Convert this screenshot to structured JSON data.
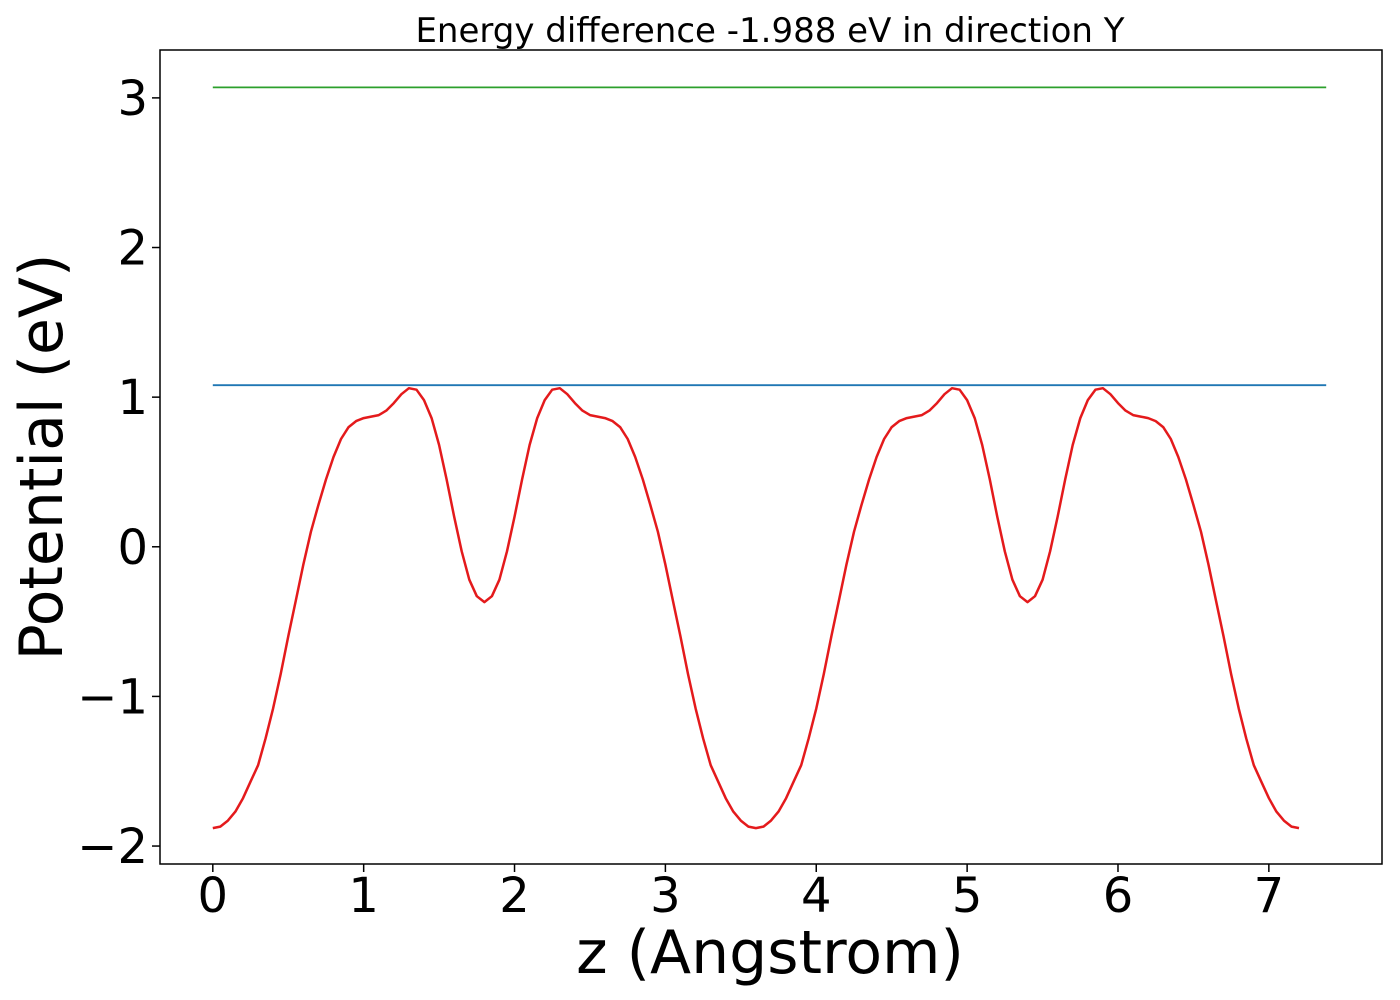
{
  "chart_data": {
    "type": "line",
    "title": "Energy difference -1.988 eV in direction Y",
    "xlabel": "z (Angstrom)",
    "ylabel": "Potential (eV)",
    "xlim": [
      -0.35,
      7.75
    ],
    "ylim": [
      -2.12,
      3.32
    ],
    "xticks": [
      0,
      1,
      2,
      3,
      4,
      5,
      6,
      7
    ],
    "xtick_labels": [
      "0",
      "1",
      "2",
      "3",
      "4",
      "5",
      "6",
      "7"
    ],
    "yticks": [
      -2,
      -1,
      0,
      1,
      2,
      3
    ],
    "ytick_labels": [
      "−2",
      "−1",
      "0",
      "1",
      "2",
      "3"
    ],
    "grid": false,
    "series": [
      {
        "color": "#e41a1c",
        "points": [
          [
            0.0,
            -1.88
          ],
          [
            0.05,
            -1.87
          ],
          [
            0.1,
            -1.83
          ],
          [
            0.15,
            -1.77
          ],
          [
            0.2,
            -1.68
          ],
          [
            0.25,
            -1.57
          ],
          [
            0.3,
            -1.46
          ],
          [
            0.35,
            -1.28
          ],
          [
            0.4,
            -1.08
          ],
          [
            0.45,
            -0.85
          ],
          [
            0.5,
            -0.6
          ],
          [
            0.55,
            -0.36
          ],
          [
            0.6,
            -0.12
          ],
          [
            0.65,
            0.1
          ],
          [
            0.7,
            0.28
          ],
          [
            0.75,
            0.45
          ],
          [
            0.8,
            0.6
          ],
          [
            0.85,
            0.72
          ],
          [
            0.9,
            0.8
          ],
          [
            0.95,
            0.84
          ],
          [
            1.0,
            0.86
          ],
          [
            1.05,
            0.87
          ],
          [
            1.1,
            0.88
          ],
          [
            1.15,
            0.91
          ],
          [
            1.2,
            0.96
          ],
          [
            1.25,
            1.02
          ],
          [
            1.3,
            1.06
          ],
          [
            1.35,
            1.05
          ],
          [
            1.4,
            0.98
          ],
          [
            1.45,
            0.86
          ],
          [
            1.5,
            0.68
          ],
          [
            1.55,
            0.45
          ],
          [
            1.6,
            0.2
          ],
          [
            1.65,
            -0.03
          ],
          [
            1.7,
            -0.22
          ],
          [
            1.75,
            -0.33
          ],
          [
            1.8,
            -0.37
          ],
          [
            1.85,
            -0.33
          ],
          [
            1.9,
            -0.22
          ],
          [
            1.95,
            -0.03
          ],
          [
            2.0,
            0.2
          ],
          [
            2.05,
            0.45
          ],
          [
            2.1,
            0.68
          ],
          [
            2.15,
            0.86
          ],
          [
            2.2,
            0.98
          ],
          [
            2.25,
            1.05
          ],
          [
            2.3,
            1.06
          ],
          [
            2.35,
            1.02
          ],
          [
            2.4,
            0.96
          ],
          [
            2.45,
            0.91
          ],
          [
            2.5,
            0.88
          ],
          [
            2.55,
            0.87
          ],
          [
            2.6,
            0.86
          ],
          [
            2.65,
            0.84
          ],
          [
            2.7,
            0.8
          ],
          [
            2.75,
            0.72
          ],
          [
            2.8,
            0.6
          ],
          [
            2.85,
            0.45
          ],
          [
            2.9,
            0.28
          ],
          [
            2.95,
            0.1
          ],
          [
            3.0,
            -0.12
          ],
          [
            3.05,
            -0.36
          ],
          [
            3.1,
            -0.6
          ],
          [
            3.15,
            -0.85
          ],
          [
            3.2,
            -1.08
          ],
          [
            3.25,
            -1.28
          ],
          [
            3.3,
            -1.46
          ],
          [
            3.35,
            -1.57
          ],
          [
            3.4,
            -1.68
          ],
          [
            3.45,
            -1.77
          ],
          [
            3.5,
            -1.83
          ],
          [
            3.55,
            -1.87
          ],
          [
            3.6,
            -1.88
          ],
          [
            3.65,
            -1.87
          ],
          [
            3.7,
            -1.83
          ],
          [
            3.75,
            -1.77
          ],
          [
            3.8,
            -1.68
          ],
          [
            3.85,
            -1.57
          ],
          [
            3.9,
            -1.46
          ],
          [
            3.95,
            -1.28
          ],
          [
            4.0,
            -1.08
          ],
          [
            4.05,
            -0.85
          ],
          [
            4.1,
            -0.6
          ],
          [
            4.15,
            -0.36
          ],
          [
            4.2,
            -0.12
          ],
          [
            4.25,
            0.1
          ],
          [
            4.3,
            0.28
          ],
          [
            4.35,
            0.45
          ],
          [
            4.4,
            0.6
          ],
          [
            4.45,
            0.72
          ],
          [
            4.5,
            0.8
          ],
          [
            4.55,
            0.84
          ],
          [
            4.6,
            0.86
          ],
          [
            4.65,
            0.87
          ],
          [
            4.7,
            0.88
          ],
          [
            4.75,
            0.91
          ],
          [
            4.8,
            0.96
          ],
          [
            4.85,
            1.02
          ],
          [
            4.9,
            1.06
          ],
          [
            4.95,
            1.05
          ],
          [
            5.0,
            0.98
          ],
          [
            5.05,
            0.86
          ],
          [
            5.1,
            0.68
          ],
          [
            5.15,
            0.45
          ],
          [
            5.2,
            0.2
          ],
          [
            5.25,
            -0.03
          ],
          [
            5.3,
            -0.22
          ],
          [
            5.35,
            -0.33
          ],
          [
            5.4,
            -0.37
          ],
          [
            5.45,
            -0.33
          ],
          [
            5.5,
            -0.22
          ],
          [
            5.55,
            -0.03
          ],
          [
            5.6,
            0.2
          ],
          [
            5.65,
            0.45
          ],
          [
            5.7,
            0.68
          ],
          [
            5.75,
            0.86
          ],
          [
            5.8,
            0.98
          ],
          [
            5.85,
            1.05
          ],
          [
            5.9,
            1.06
          ],
          [
            5.95,
            1.02
          ],
          [
            6.0,
            0.96
          ],
          [
            6.05,
            0.91
          ],
          [
            6.1,
            0.88
          ],
          [
            6.15,
            0.87
          ],
          [
            6.2,
            0.86
          ],
          [
            6.25,
            0.84
          ],
          [
            6.3,
            0.8
          ],
          [
            6.35,
            0.72
          ],
          [
            6.4,
            0.6
          ],
          [
            6.45,
            0.45
          ],
          [
            6.5,
            0.28
          ],
          [
            6.55,
            0.1
          ],
          [
            6.6,
            -0.12
          ],
          [
            6.65,
            -0.36
          ],
          [
            6.7,
            -0.6
          ],
          [
            6.75,
            -0.85
          ],
          [
            6.8,
            -1.08
          ],
          [
            6.85,
            -1.28
          ],
          [
            6.9,
            -1.46
          ],
          [
            6.95,
            -1.57
          ],
          [
            7.0,
            -1.68
          ],
          [
            7.05,
            -1.77
          ],
          [
            7.1,
            -1.83
          ],
          [
            7.15,
            -1.87
          ],
          [
            7.2,
            -1.88
          ]
        ]
      },
      {
        "color": "#1f77b4",
        "points": [
          [
            0.0,
            1.08
          ],
          [
            7.38,
            1.08
          ]
        ]
      },
      {
        "color": "#2ca02c",
        "points": [
          [
            0.0,
            3.07
          ],
          [
            7.38,
            3.07
          ]
        ]
      }
    ]
  }
}
